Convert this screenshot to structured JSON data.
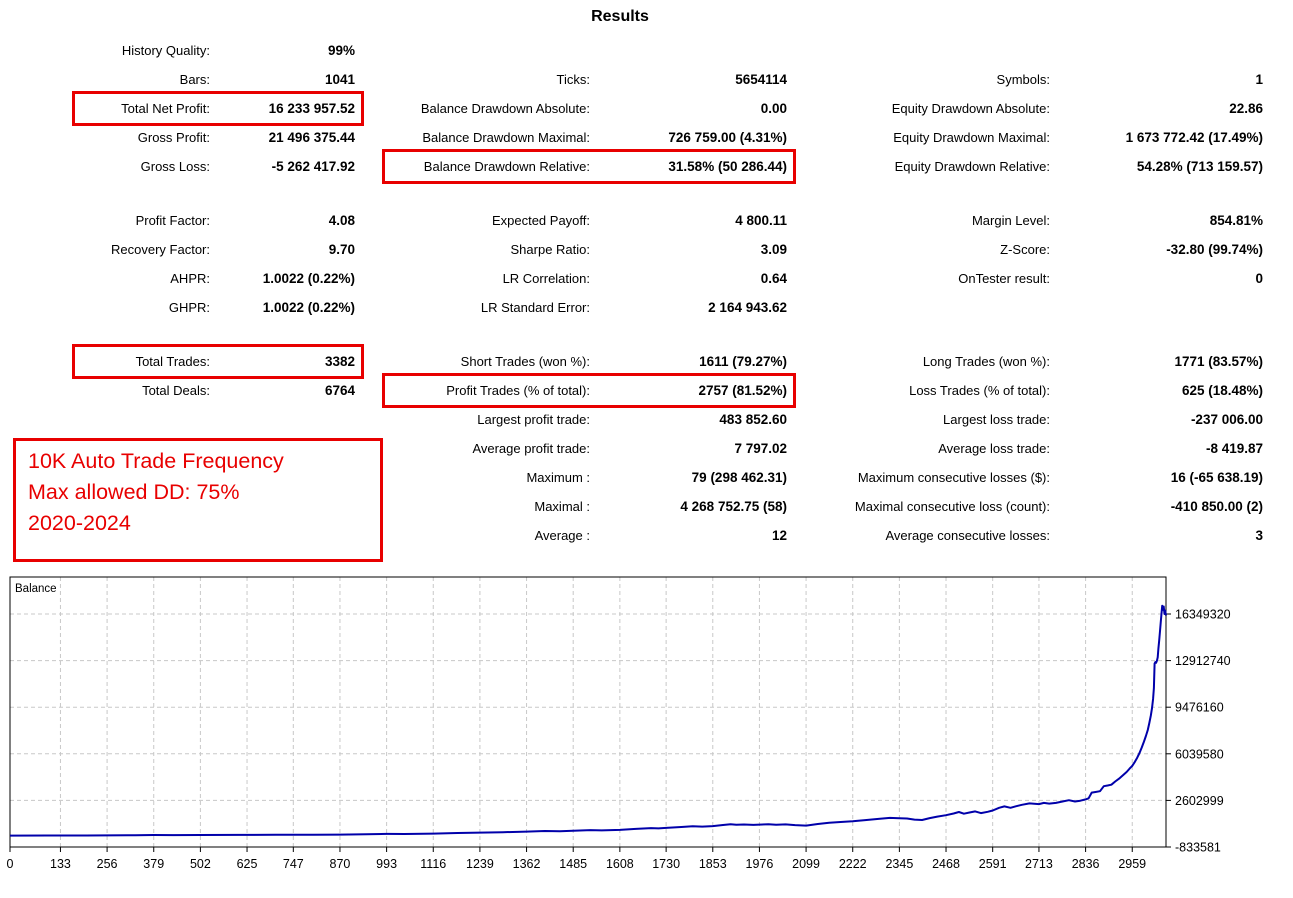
{
  "title": "Results",
  "colors": {
    "accent_red": "#e80000",
    "line_blue": "#0000aa",
    "grid_gray": "#c8c8c8",
    "axis_black": "#000000"
  },
  "annotation": {
    "lines": [
      "10K Auto Trade Frequency",
      "Max allowed DD: 75%",
      "2020-2024"
    ]
  },
  "stats": {
    "columns": [
      {
        "sections": [
          [
            {
              "label": "History Quality:",
              "value": "99%"
            },
            {
              "label": "Bars:",
              "value": "1041"
            },
            {
              "label": "Total Net Profit:",
              "value": "16 233 957.52",
              "boxed": true
            },
            {
              "label": "Gross Profit:",
              "value": "21 496 375.44"
            },
            {
              "label": "Gross Loss:",
              "value": "-5 262 417.92"
            }
          ],
          [
            {
              "label": "Profit Factor:",
              "value": "4.08"
            },
            {
              "label": "Recovery Factor:",
              "value": "9.70"
            },
            {
              "label": "AHPR:",
              "value": "1.0022 (0.22%)"
            },
            {
              "label": "GHPR:",
              "value": "1.0022 (0.22%)"
            }
          ],
          [
            {
              "label": "Total Trades:",
              "value": "3382",
              "boxed": true
            },
            {
              "label": "Total Deals:",
              "value": "6764"
            },
            {
              "empty": true
            },
            {
              "empty": true
            },
            {
              "empty": true
            },
            {
              "empty": true
            },
            {
              "empty": true
            }
          ]
        ]
      },
      {
        "sections": [
          [
            {
              "empty": true
            },
            {
              "label": "Ticks:",
              "value": "5654114"
            },
            {
              "label": "Balance Drawdown Absolute:",
              "value": "0.00"
            },
            {
              "label": "Balance Drawdown Maximal:",
              "value": "726 759.00 (4.31%)"
            },
            {
              "label": "Balance Drawdown Relative:",
              "value": "31.58% (50 286.44)",
              "boxed": true
            }
          ],
          [
            {
              "label": "Expected Payoff:",
              "value": "4 800.11"
            },
            {
              "label": "Sharpe Ratio:",
              "value": "3.09"
            },
            {
              "label": "LR Correlation:",
              "value": "0.64"
            },
            {
              "label": "LR Standard Error:",
              "value": "2 164 943.62"
            }
          ],
          [
            {
              "label": "Short Trades (won %):",
              "value": "1611 (79.27%)"
            },
            {
              "label": "Profit Trades (% of total):",
              "value": "2757 (81.52%)",
              "boxed": true
            },
            {
              "label": "Largest profit trade:",
              "value": "483 852.60"
            },
            {
              "label": "Average profit trade:",
              "value": "7 797.02"
            },
            {
              "label": "Maximum :",
              "value": "79 (298 462.31)"
            },
            {
              "label": "Maximal :",
              "value": "4 268 752.75 (58)"
            },
            {
              "label": "Average :",
              "value": "12"
            }
          ]
        ]
      },
      {
        "sections": [
          [
            {
              "empty": true
            },
            {
              "label": "Symbols:",
              "value": "1"
            },
            {
              "label": "Equity Drawdown Absolute:",
              "value": "22.86"
            },
            {
              "label": "Equity Drawdown Maximal:",
              "value": "1 673 772.42 (17.49%)"
            },
            {
              "label": "Equity Drawdown Relative:",
              "value": "54.28% (713 159.57)"
            }
          ],
          [
            {
              "label": "Margin Level:",
              "value": "854.81%"
            },
            {
              "label": "Z-Score:",
              "value": "-32.80 (99.74%)"
            },
            {
              "label": "OnTester result:",
              "value": "0"
            },
            {
              "empty": true
            }
          ],
          [
            {
              "label": "Long Trades (won %):",
              "value": "1771 (83.57%)"
            },
            {
              "label": "Loss Trades (% of total):",
              "value": "625 (18.48%)"
            },
            {
              "label": "Largest loss trade:",
              "value": "-237 006.00"
            },
            {
              "label": "Average loss trade:",
              "value": "-8 419.87"
            },
            {
              "label": "Maximum consecutive losses ($):",
              "value": "16 (-65 638.19)"
            },
            {
              "label": "Maximal consecutive loss (count):",
              "value": "-410 850.00 (2)"
            },
            {
              "label": "Average consecutive losses:",
              "value": "3"
            }
          ]
        ]
      }
    ]
  },
  "chart_data": {
    "type": "line",
    "title": "Balance",
    "legend_position": "top-left",
    "grid": "dashed",
    "line_color": "#0000aa",
    "x_ticks": [
      0,
      133,
      256,
      379,
      502,
      625,
      747,
      870,
      993,
      1116,
      1239,
      1362,
      1485,
      1608,
      1730,
      1853,
      1976,
      2099,
      2222,
      2345,
      2468,
      2591,
      2713,
      2836,
      2959
    ],
    "y_ticks": [
      16349320,
      12912740,
      9476160,
      6039580,
      2602999,
      -833581
    ],
    "x_range": [
      0,
      3048
    ],
    "y_range": [
      -833581,
      19077419
    ],
    "series": [
      {
        "name": "Balance",
        "points": [
          [
            0,
            10000
          ],
          [
            100,
            12000
          ],
          [
            200,
            18000
          ],
          [
            310,
            35000
          ],
          [
            330,
            30000
          ],
          [
            379,
            48000
          ],
          [
            430,
            42000
          ],
          [
            502,
            52000
          ],
          [
            600,
            58000
          ],
          [
            700,
            65000
          ],
          [
            800,
            72000
          ],
          [
            870,
            80000
          ],
          [
            940,
            110000
          ],
          [
            993,
            130000
          ],
          [
            1040,
            125000
          ],
          [
            1116,
            155000
          ],
          [
            1180,
            200000
          ],
          [
            1239,
            230000
          ],
          [
            1300,
            260000
          ],
          [
            1362,
            300000
          ],
          [
            1410,
            350000
          ],
          [
            1450,
            330000
          ],
          [
            1485,
            360000
          ],
          [
            1530,
            410000
          ],
          [
            1560,
            390000
          ],
          [
            1608,
            430000
          ],
          [
            1650,
            500000
          ],
          [
            1690,
            560000
          ],
          [
            1710,
            540000
          ],
          [
            1730,
            575000
          ],
          [
            1770,
            640000
          ],
          [
            1800,
            700000
          ],
          [
            1825,
            670000
          ],
          [
            1853,
            710000
          ],
          [
            1880,
            790000
          ],
          [
            1900,
            840000
          ],
          [
            1915,
            800000
          ],
          [
            1935,
            825000
          ],
          [
            1960,
            795000
          ],
          [
            1976,
            820000
          ],
          [
            2000,
            850000
          ],
          [
            2020,
            810000
          ],
          [
            2045,
            835000
          ],
          [
            2070,
            780000
          ],
          [
            2099,
            745000
          ],
          [
            2130,
            860000
          ],
          [
            2160,
            950000
          ],
          [
            2190,
            1010000
          ],
          [
            2222,
            1060000
          ],
          [
            2255,
            1150000
          ],
          [
            2290,
            1240000
          ],
          [
            2320,
            1310000
          ],
          [
            2345,
            1290000
          ],
          [
            2365,
            1270000
          ],
          [
            2385,
            1190000
          ],
          [
            2405,
            1160000
          ],
          [
            2425,
            1300000
          ],
          [
            2445,
            1410000
          ],
          [
            2468,
            1510000
          ],
          [
            2488,
            1640000
          ],
          [
            2502,
            1750000
          ],
          [
            2515,
            1620000
          ],
          [
            2530,
            1710000
          ],
          [
            2545,
            1790000
          ],
          [
            2560,
            1670000
          ],
          [
            2578,
            1760000
          ],
          [
            2591,
            1860000
          ],
          [
            2608,
            2060000
          ],
          [
            2622,
            2160000
          ],
          [
            2638,
            2060000
          ],
          [
            2652,
            2170000
          ],
          [
            2668,
            2280000
          ],
          [
            2688,
            2380000
          ],
          [
            2713,
            2330000
          ],
          [
            2726,
            2420000
          ],
          [
            2740,
            2370000
          ],
          [
            2758,
            2420000
          ],
          [
            2775,
            2520000
          ],
          [
            2792,
            2620000
          ],
          [
            2808,
            2520000
          ],
          [
            2822,
            2580000
          ],
          [
            2836,
            2680000
          ],
          [
            2844,
            2760000
          ],
          [
            2852,
            3180000
          ],
          [
            2862,
            3220000
          ],
          [
            2874,
            3280000
          ],
          [
            2884,
            3650000
          ],
          [
            2894,
            3700000
          ],
          [
            2904,
            3760000
          ],
          [
            2914,
            4000000
          ],
          [
            2924,
            4200000
          ],
          [
            2934,
            4450000
          ],
          [
            2944,
            4700000
          ],
          [
            2952,
            4950000
          ],
          [
            2959,
            5150000
          ],
          [
            2966,
            5450000
          ],
          [
            2972,
            5750000
          ],
          [
            2978,
            6100000
          ],
          [
            2984,
            6500000
          ],
          [
            2990,
            6950000
          ],
          [
            2995,
            7350000
          ],
          [
            3000,
            7800000
          ],
          [
            3004,
            8300000
          ],
          [
            3008,
            8850000
          ],
          [
            3011,
            9400000
          ],
          [
            3014,
            10100000
          ],
          [
            3016,
            10900000
          ],
          [
            3018,
            12700000
          ],
          [
            3020,
            12800000
          ],
          [
            3022,
            12750000
          ],
          [
            3024,
            12900000
          ],
          [
            3026,
            13150000
          ],
          [
            3028,
            13800000
          ],
          [
            3030,
            14400000
          ],
          [
            3032,
            15000000
          ],
          [
            3034,
            15700000
          ],
          [
            3036,
            16300000
          ],
          [
            3038,
            16950000
          ],
          [
            3040,
            16650000
          ],
          [
            3042,
            16900000
          ],
          [
            3044,
            16350000
          ],
          [
            3046,
            16600000
          ],
          [
            3048,
            16240000
          ]
        ]
      }
    ]
  }
}
